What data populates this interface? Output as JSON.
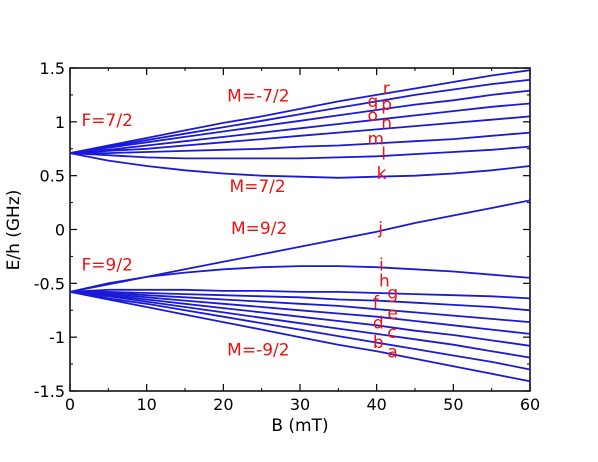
{
  "chart_data": {
    "type": "line",
    "xlabel": "B (mT)",
    "ylabel": "E/h (GHz)",
    "xlim": [
      0,
      60
    ],
    "ylim": [
      -1.5,
      1.5
    ],
    "xticks": [
      "0",
      "10",
      "20",
      "30",
      "40",
      "50",
      "60"
    ],
    "yticks": [
      "-1.5",
      "-1",
      "-0.5",
      "0",
      "0.5",
      "1",
      "1.5"
    ],
    "grid": false,
    "legend": "none",
    "colors": {
      "curves": "#1a1ad6",
      "annotations": "#ee1111"
    },
    "x": [
      0,
      5,
      10,
      15,
      20,
      25,
      30,
      35,
      40,
      45,
      50,
      55,
      60
    ],
    "series": [
      {
        "name": "a",
        "values": [
          -0.58,
          -0.65,
          -0.72,
          -0.79,
          -0.86,
          -0.93,
          -1.0,
          -1.07,
          -1.13,
          -1.2,
          -1.27,
          -1.34,
          -1.41
        ]
      },
      {
        "name": "b",
        "values": [
          -0.58,
          -0.64,
          -0.69,
          -0.75,
          -0.81,
          -0.87,
          -0.93,
          -0.99,
          -1.05,
          -1.11,
          -1.17,
          -1.23,
          -1.3
        ]
      },
      {
        "name": "c",
        "values": [
          -0.58,
          -0.62,
          -0.67,
          -0.72,
          -0.77,
          -0.82,
          -0.87,
          -0.92,
          -0.97,
          -1.02,
          -1.07,
          -1.13,
          -1.19
        ]
      },
      {
        "name": "d",
        "values": [
          -0.58,
          -0.61,
          -0.65,
          -0.69,
          -0.73,
          -0.77,
          -0.81,
          -0.85,
          -0.89,
          -0.94,
          -0.98,
          -1.03,
          -1.08
        ]
      },
      {
        "name": "e",
        "values": [
          -0.58,
          -0.6,
          -0.63,
          -0.66,
          -0.69,
          -0.72,
          -0.75,
          -0.78,
          -0.81,
          -0.85,
          -0.89,
          -0.93,
          -0.97
        ]
      },
      {
        "name": "f",
        "values": [
          -0.58,
          -0.59,
          -0.61,
          -0.63,
          -0.65,
          -0.67,
          -0.69,
          -0.71,
          -0.74,
          -0.77,
          -0.8,
          -0.83,
          -0.86
        ]
      },
      {
        "name": "g",
        "values": [
          -0.58,
          -0.58,
          -0.59,
          -0.6,
          -0.61,
          -0.62,
          -0.63,
          -0.65,
          -0.66,
          -0.68,
          -0.7,
          -0.72,
          -0.75
        ]
      },
      {
        "name": "h",
        "values": [
          -0.58,
          -0.56,
          -0.56,
          -0.56,
          -0.57,
          -0.57,
          -0.58,
          -0.58,
          -0.59,
          -0.6,
          -0.61,
          -0.62,
          -0.64
        ]
      },
      {
        "name": "i",
        "values": [
          -0.58,
          -0.5,
          -0.44,
          -0.4,
          -0.37,
          -0.35,
          -0.34,
          -0.34,
          -0.35,
          -0.37,
          -0.39,
          -0.42,
          -0.45
        ]
      },
      {
        "name": "j",
        "values": [
          -0.58,
          -0.51,
          -0.44,
          -0.37,
          -0.3,
          -0.23,
          -0.16,
          -0.09,
          -0.02,
          0.06,
          0.13,
          0.2,
          0.27
        ]
      },
      {
        "name": "k",
        "values": [
          0.71,
          0.64,
          0.59,
          0.55,
          0.52,
          0.5,
          0.49,
          0.48,
          0.49,
          0.5,
          0.52,
          0.55,
          0.59
        ]
      },
      {
        "name": "l",
        "values": [
          0.71,
          0.69,
          0.67,
          0.66,
          0.66,
          0.66,
          0.66,
          0.67,
          0.68,
          0.7,
          0.72,
          0.74,
          0.77
        ]
      },
      {
        "name": "m",
        "values": [
          0.71,
          0.71,
          0.72,
          0.73,
          0.74,
          0.75,
          0.77,
          0.78,
          0.8,
          0.82,
          0.84,
          0.87,
          0.9
        ]
      },
      {
        "name": "n",
        "values": [
          0.71,
          0.73,
          0.75,
          0.78,
          0.81,
          0.84,
          0.87,
          0.9,
          0.93,
          0.96,
          0.99,
          1.02,
          1.05
        ]
      },
      {
        "name": "o",
        "values": [
          0.71,
          0.74,
          0.78,
          0.82,
          0.86,
          0.9,
          0.94,
          0.98,
          1.02,
          1.06,
          1.1,
          1.14,
          1.17
        ]
      },
      {
        "name": "p",
        "values": [
          0.71,
          0.76,
          0.81,
          0.86,
          0.91,
          0.96,
          1.01,
          1.06,
          1.11,
          1.16,
          1.2,
          1.25,
          1.29
        ]
      },
      {
        "name": "q",
        "values": [
          0.71,
          0.77,
          0.83,
          0.89,
          0.95,
          1.01,
          1.07,
          1.13,
          1.19,
          1.25,
          1.3,
          1.35,
          1.39
        ]
      },
      {
        "name": "r",
        "values": [
          0.71,
          0.78,
          0.85,
          0.92,
          0.99,
          1.05,
          1.12,
          1.19,
          1.25,
          1.31,
          1.37,
          1.43,
          1.48
        ]
      }
    ],
    "annotations": [
      {
        "text": "F=7/2",
        "x": 1.5,
        "y": 0.96
      },
      {
        "text": "F=9/2",
        "x": 1.5,
        "y": -0.38
      },
      {
        "text": "M=-7/2",
        "x": 20.5,
        "y": 1.19
      },
      {
        "text": "M=7/2",
        "x": 20.8,
        "y": 0.35
      },
      {
        "text": "M=9/2",
        "x": 21.0,
        "y": -0.04
      },
      {
        "text": "M=-9/2",
        "x": 20.5,
        "y": -1.17
      },
      {
        "text": "r",
        "x": 40.8,
        "y": 1.26
      },
      {
        "text": "q",
        "x": 38.8,
        "y": 1.14
      },
      {
        "text": "p",
        "x": 40.6,
        "y": 1.11
      },
      {
        "text": "o",
        "x": 38.8,
        "y": 1.01
      },
      {
        "text": "n",
        "x": 40.6,
        "y": 0.94
      },
      {
        "text": "m",
        "x": 38.8,
        "y": 0.79
      },
      {
        "text": "l",
        "x": 40.6,
        "y": 0.65
      },
      {
        "text": "k",
        "x": 40.0,
        "y": 0.47
      },
      {
        "text": "j",
        "x": 40.2,
        "y": -0.04
      },
      {
        "text": "i",
        "x": 40.3,
        "y": -0.38
      },
      {
        "text": "h",
        "x": 40.3,
        "y": -0.53
      },
      {
        "text": "g",
        "x": 41.4,
        "y": -0.64
      },
      {
        "text": "f",
        "x": 39.5,
        "y": -0.73
      },
      {
        "text": "e",
        "x": 41.4,
        "y": -0.83
      },
      {
        "text": "d",
        "x": 39.5,
        "y": -0.92
      },
      {
        "text": "c",
        "x": 41.4,
        "y": -1.01
      },
      {
        "text": "b",
        "x": 39.5,
        "y": -1.1
      },
      {
        "text": "a",
        "x": 41.4,
        "y": -1.19
      }
    ]
  }
}
